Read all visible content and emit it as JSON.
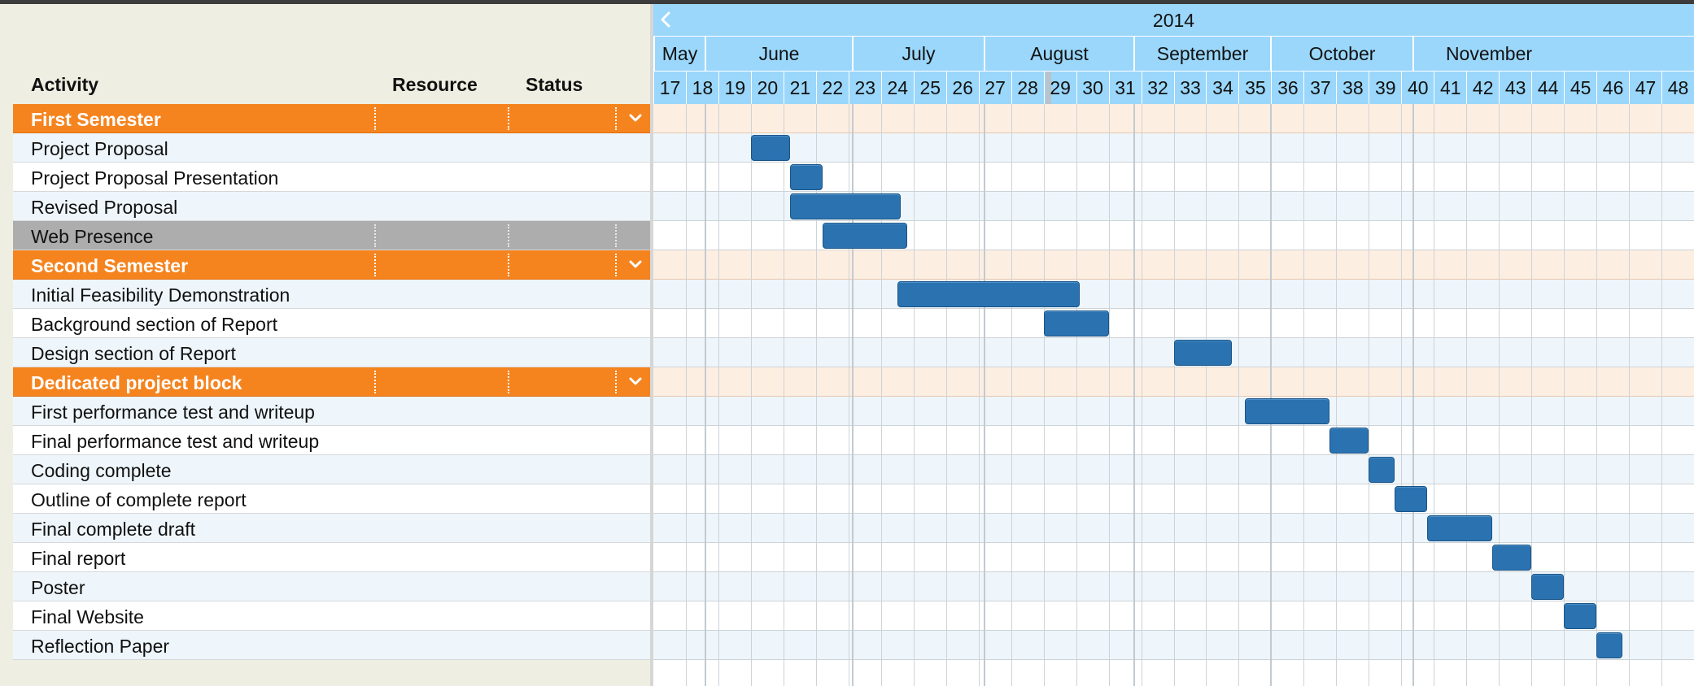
{
  "grid": {
    "columns": {
      "activity": "Activity",
      "resource": "Resource",
      "status": "Status"
    }
  },
  "timeline": {
    "year": "2014",
    "months": [
      "May",
      "June",
      "July",
      "August",
      "September",
      "October",
      "November"
    ],
    "weeks": [
      "17",
      "18",
      "19",
      "20",
      "21",
      "22",
      "23",
      "24",
      "25",
      "26",
      "27",
      "28",
      "29",
      "30",
      "31",
      "32",
      "33",
      "34",
      "35",
      "36",
      "37",
      "38",
      "39",
      "40",
      "41",
      "42",
      "43",
      "44",
      "45",
      "46",
      "47",
      "48"
    ],
    "current_week": "29"
  },
  "rows": [
    {
      "type": "group",
      "label": "First Semester"
    },
    {
      "type": "task",
      "label": "Project Proposal",
      "start_week": 20.0,
      "end_week": 21.2
    },
    {
      "type": "task",
      "label": "Project Proposal Presentation",
      "start_week": 21.2,
      "end_week": 22.2
    },
    {
      "type": "task",
      "label": "Revised Proposal",
      "start_week": 21.2,
      "end_week": 24.6
    },
    {
      "type": "task",
      "label": "Web Presence",
      "start_week": 22.2,
      "end_week": 24.8,
      "selected": true
    },
    {
      "type": "group",
      "label": "Second Semester"
    },
    {
      "type": "task",
      "label": "Initial Feasibility Demonstration",
      "start_week": 24.5,
      "end_week": 30.1
    },
    {
      "type": "task",
      "label": "Background section of Report",
      "start_week": 29.0,
      "end_week": 31.0
    },
    {
      "type": "task",
      "label": "Design section of Report",
      "start_week": 33.0,
      "end_week": 34.8
    },
    {
      "type": "group",
      "label": "Dedicated project block"
    },
    {
      "type": "task",
      "label": "First performance test and writeup",
      "start_week": 35.2,
      "end_week": 37.8
    },
    {
      "type": "task",
      "label": "Final performance test and writeup",
      "start_week": 37.8,
      "end_week": 39.0
    },
    {
      "type": "task",
      "label": "Coding complete",
      "start_week": 39.0,
      "end_week": 39.8
    },
    {
      "type": "task",
      "label": "Outline of complete report",
      "start_week": 39.8,
      "end_week": 40.8
    },
    {
      "type": "task",
      "label": "Final complete draft",
      "start_week": 40.8,
      "end_week": 42.8
    },
    {
      "type": "task",
      "label": "Final report",
      "start_week": 42.8,
      "end_week": 44.0
    },
    {
      "type": "task",
      "label": "Poster",
      "start_week": 44.0,
      "end_week": 45.0
    },
    {
      "type": "task",
      "label": "Final Website",
      "start_week": 45.0,
      "end_week": 46.0
    },
    {
      "type": "task",
      "label": "Reflection Paper",
      "start_week": 46.0,
      "end_week": 46.8
    }
  ],
  "icons": {
    "collapse": "chevron-down-icon",
    "nav_prev": "chevron-left-icon"
  },
  "colors": {
    "group_row": "#f5841f",
    "task_bar": "#2a72b0",
    "header_bg": "#9ad7fb",
    "selected_row": "#adadad"
  }
}
